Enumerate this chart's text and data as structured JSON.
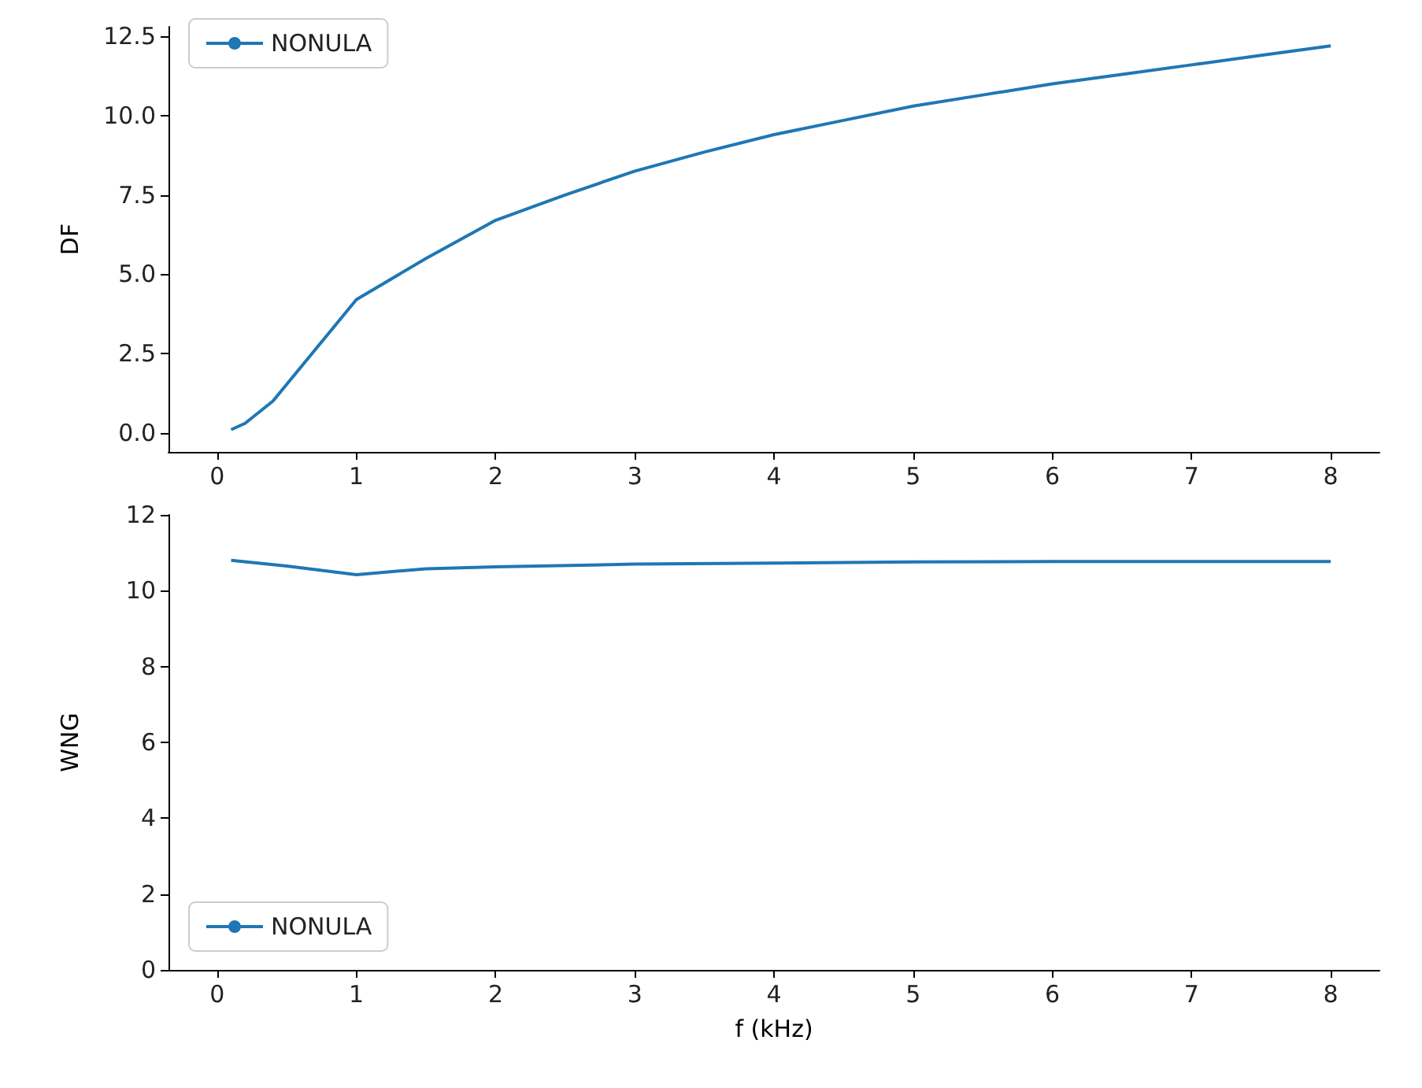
{
  "chart_data": [
    {
      "type": "line",
      "ylabel": "DF",
      "x": [
        0.1,
        0.2,
        0.4,
        1,
        1.5,
        2,
        2.5,
        3,
        3.5,
        4,
        4.5,
        5,
        5.5,
        6,
        6.5,
        7,
        7.5,
        8
      ],
      "series": [
        {
          "name": "NONULA",
          "color": "#1f77b4",
          "values": [
            0.1,
            0.3,
            1.0,
            4.2,
            5.5,
            6.7,
            7.5,
            8.25,
            8.85,
            9.4,
            9.85,
            10.3,
            10.65,
            11.0,
            11.3,
            11.6,
            11.9,
            12.2
          ]
        }
      ],
      "xlim": [
        -0.35,
        8.35
      ],
      "xticks": [
        0,
        1,
        2,
        3,
        4,
        5,
        6,
        7,
        8
      ],
      "ylim": [
        -0.6,
        12.8
      ],
      "yticks": [
        {
          "value": 0,
          "label": "0.0"
        },
        {
          "value": 2.5,
          "label": "2.5"
        },
        {
          "value": 5,
          "label": "5.0"
        },
        {
          "value": 7.5,
          "label": "7.5"
        },
        {
          "value": 10,
          "label": "10.0"
        },
        {
          "value": 12.5,
          "label": "12.5"
        }
      ],
      "legend": "top left",
      "grid": false
    },
    {
      "type": "line",
      "ylabel": "WNG",
      "xlabel": "f (kHz)",
      "x": [
        0.1,
        0.5,
        1,
        1.5,
        2,
        3,
        4,
        5,
        6,
        7,
        8
      ],
      "series": [
        {
          "name": "NONULA",
          "color": "#1f77b4",
          "values": [
            10.8,
            10.65,
            10.42,
            10.58,
            10.63,
            10.7,
            10.73,
            10.76,
            10.77,
            10.77,
            10.77
          ]
        }
      ],
      "xlim": [
        -0.35,
        8.35
      ],
      "xticks": [
        0,
        1,
        2,
        3,
        4,
        5,
        6,
        7,
        8
      ],
      "ylim": [
        0,
        12
      ],
      "yticks": [
        0,
        2,
        4,
        6,
        8,
        10,
        12
      ],
      "legend": "bottom left",
      "grid": false
    }
  ]
}
